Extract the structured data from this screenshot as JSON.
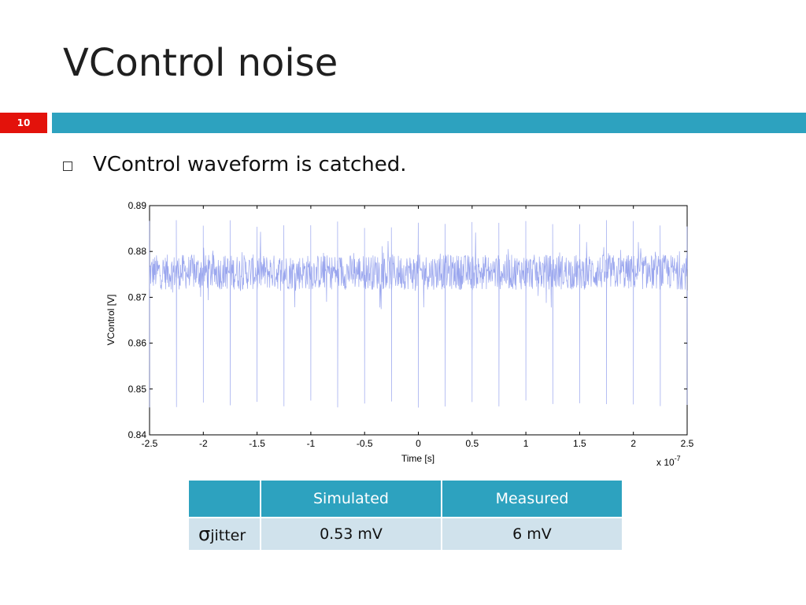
{
  "slide": {
    "title": "VControl noise",
    "number": "10",
    "bullet": "VControl waveform is catched.",
    "accent_color": "#2da2bf",
    "number_bg_color": "#e3120b"
  },
  "chart_data": {
    "type": "line",
    "xlabel": "Time [s]",
    "ylabel": "VControl [V]",
    "x_exponent_label": "x 10",
    "x_exponent": "-7",
    "xlim": [
      -2.5,
      2.5
    ],
    "ylim": [
      0.84,
      0.89
    ],
    "x_ticks": [
      "-2.5",
      "-2",
      "-1.5",
      "-1",
      "-0.5",
      "0",
      "0.5",
      "1",
      "1.5",
      "2",
      "2.5"
    ],
    "y_ticks": [
      "0.84",
      "0.85",
      "0.86",
      "0.87",
      "0.88",
      "0.89"
    ],
    "line_color": "#9aa6ee",
    "baseline": 0.8755,
    "noise_band": [
      0.873,
      0.88
    ],
    "spike_times": [
      -2.5,
      -2.25,
      -2.0,
      -1.75,
      -1.5,
      -1.25,
      -1.0,
      -0.75,
      -0.5,
      -0.25,
      0.0,
      0.25,
      0.5,
      0.75,
      1.0,
      1.25,
      1.5,
      1.75,
      2.0,
      2.25,
      2.5
    ],
    "spike_peak": 0.887,
    "spike_trough": 0.845,
    "grid": false
  },
  "table": {
    "header": [
      "",
      "Simulated",
      "Measured"
    ],
    "row_label_symbol": "σ",
    "row_label_sub": "jitter",
    "row_values": [
      "0.53 mV",
      "6 mV"
    ]
  }
}
